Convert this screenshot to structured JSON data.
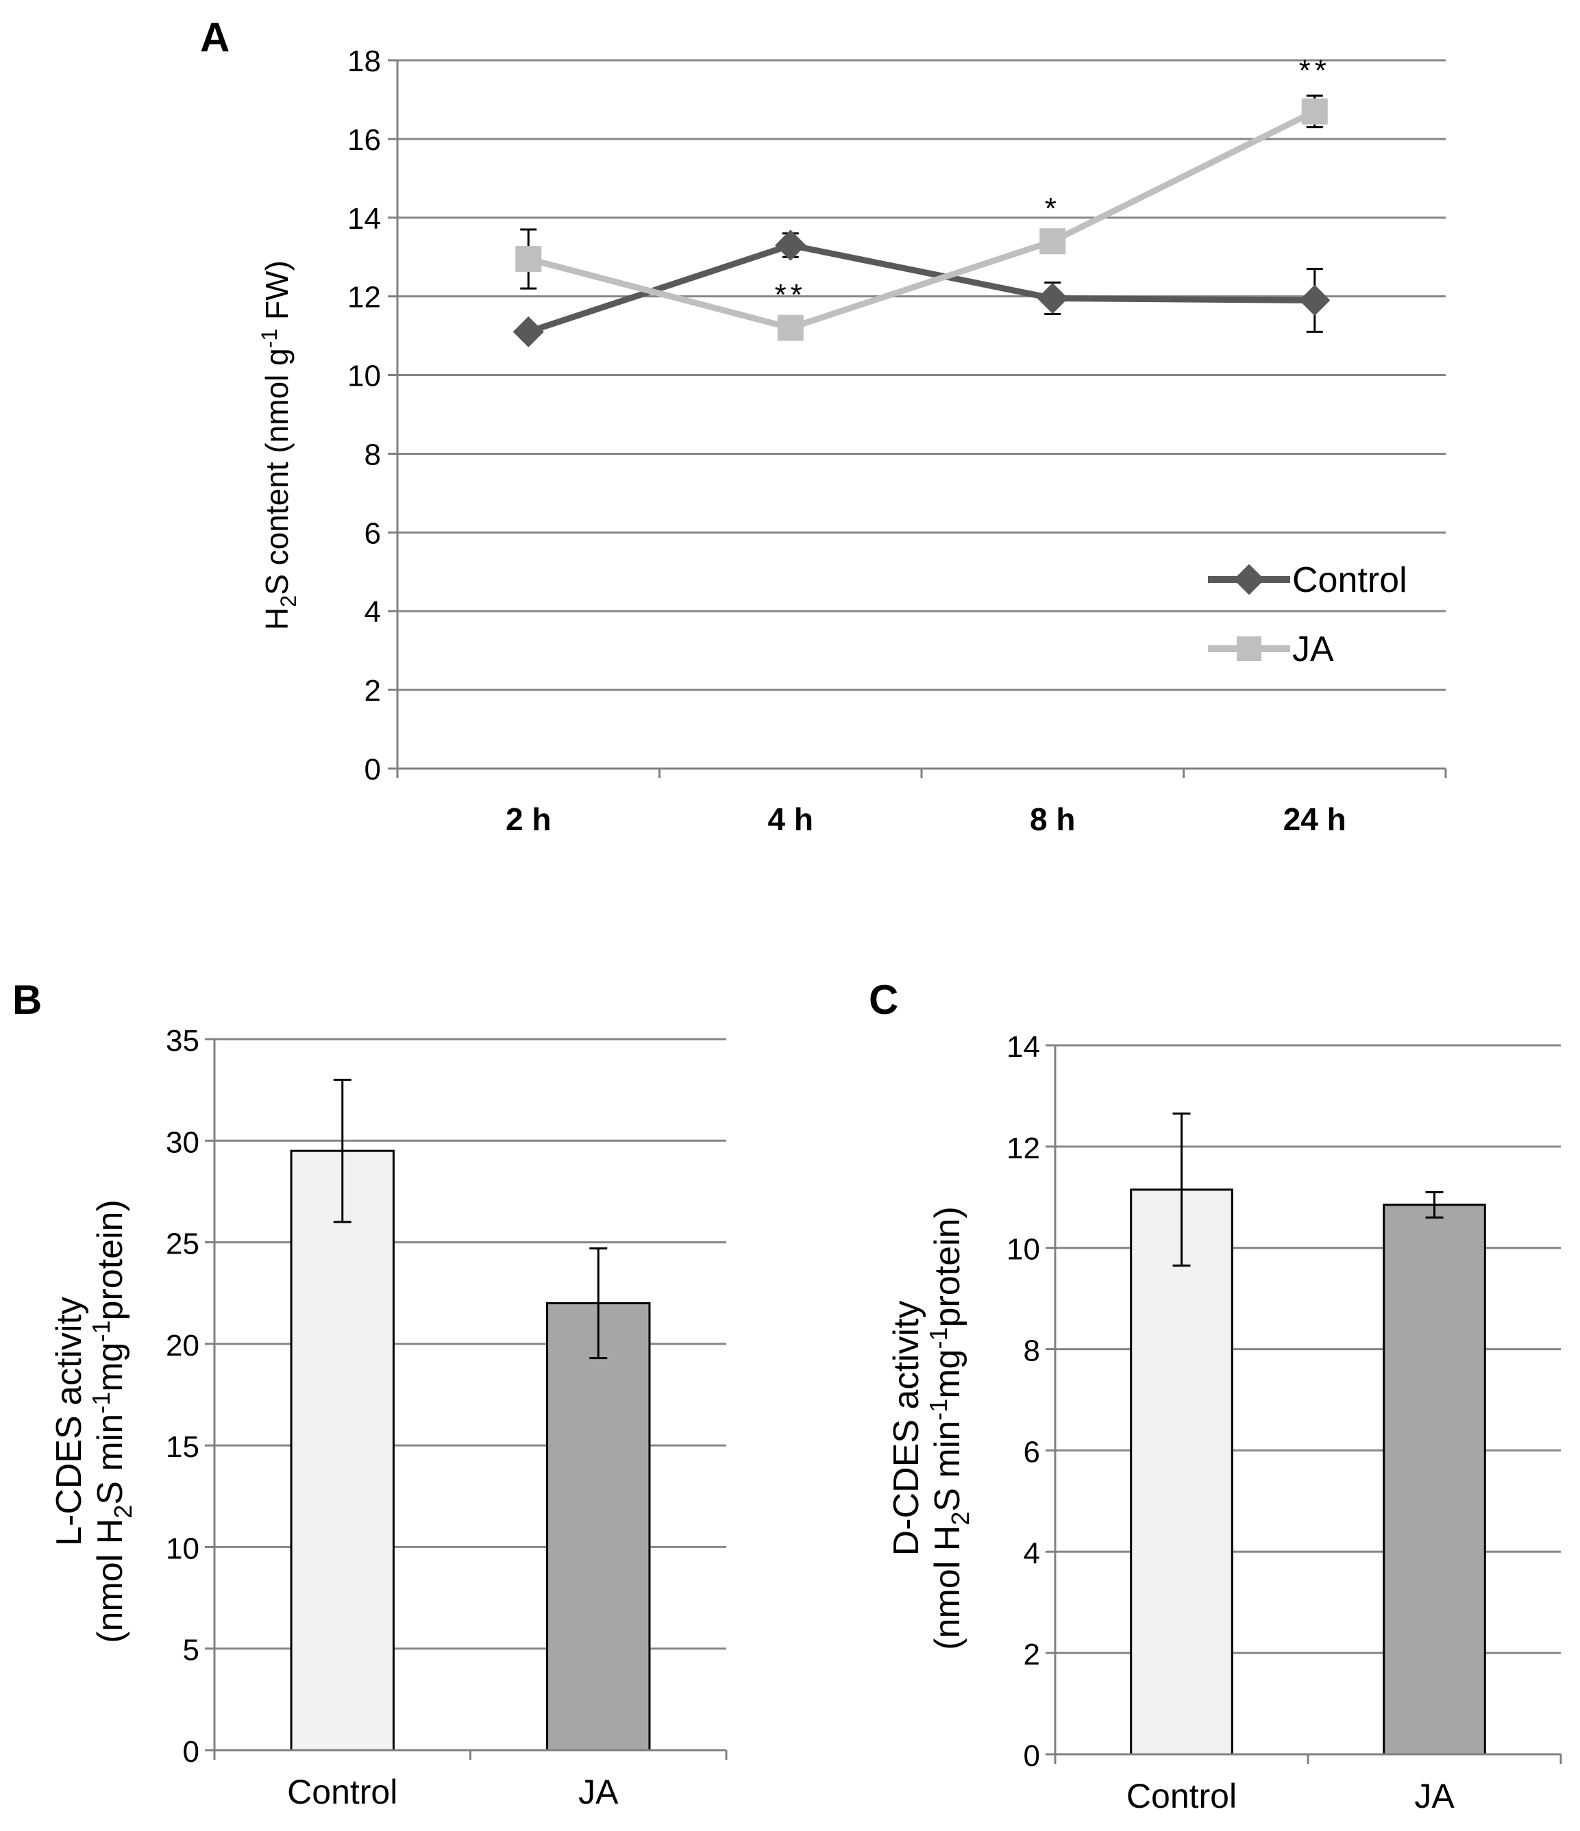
{
  "colors": {
    "control": "#595959",
    "ja": "#bfbfbf",
    "bar_control": "#f2f2f2",
    "bar_ja": "#a6a6a6",
    "grid": "#868686",
    "axis": "#808080",
    "star_blue": "#1f3864"
  },
  "chart_data": [
    {
      "panel": "A",
      "type": "line",
      "categories": [
        "2 h",
        "4 h",
        "8 h",
        "24 h"
      ],
      "ylim": [
        0,
        18
      ],
      "yticks": [
        "0",
        "2",
        "4",
        "6",
        "8",
        "10",
        "12",
        "14",
        "16",
        "18"
      ],
      "ylabel": {
        "prefix": "H",
        "sub": "2",
        "mid": "S content (nmol g",
        "sup": "-1",
        "suffix": " FW)"
      },
      "series": [
        {
          "name": "Control",
          "marker": "diamond",
          "values": [
            11.1,
            13.3,
            11.95,
            11.9
          ],
          "errors": [
            0.15,
            0.3,
            0.4,
            0.8
          ]
        },
        {
          "name": "JA",
          "marker": "square",
          "values": [
            12.95,
            11.2,
            13.4,
            16.7
          ],
          "errors": [
            0.75,
            0.2,
            0.2,
            0.4
          ]
        }
      ],
      "annotations": [
        {
          "category": "4 h",
          "text": "**"
        },
        {
          "category": "8 h",
          "text": "*"
        },
        {
          "category": "24 h",
          "text": "**"
        }
      ],
      "legend_position": "right"
    },
    {
      "panel": "B",
      "type": "bar",
      "categories": [
        "Control",
        "JA"
      ],
      "values": [
        29.5,
        22.0
      ],
      "errors": [
        3.5,
        2.7
      ],
      "ylim": [
        0,
        35
      ],
      "yticks": [
        "0",
        "5",
        "10",
        "15",
        "20",
        "25",
        "30",
        "35"
      ],
      "ylabel_line1": "L-CDES activity",
      "ylabel_line2": {
        "p1": "(nmol H",
        "sub": "2",
        "p2": "S min",
        "sup1": "-1",
        "p3": "mg",
        "sup2": "-1",
        "p4": "protein)"
      }
    },
    {
      "panel": "C",
      "type": "bar",
      "categories": [
        "Control",
        "JA"
      ],
      "values": [
        11.15,
        10.85
      ],
      "errors": [
        1.5,
        0.25
      ],
      "ylim": [
        0,
        14
      ],
      "yticks": [
        "0",
        "2",
        "4",
        "6",
        "8",
        "10",
        "12",
        "14"
      ],
      "ylabel_line1": "D-CDES activity",
      "ylabel_line2": {
        "p1": "(nmol H",
        "sub": "2",
        "p2": "S min",
        "sup1": "-1",
        "p3": "mg",
        "sup2": "-1",
        "p4": "protein)"
      }
    }
  ]
}
